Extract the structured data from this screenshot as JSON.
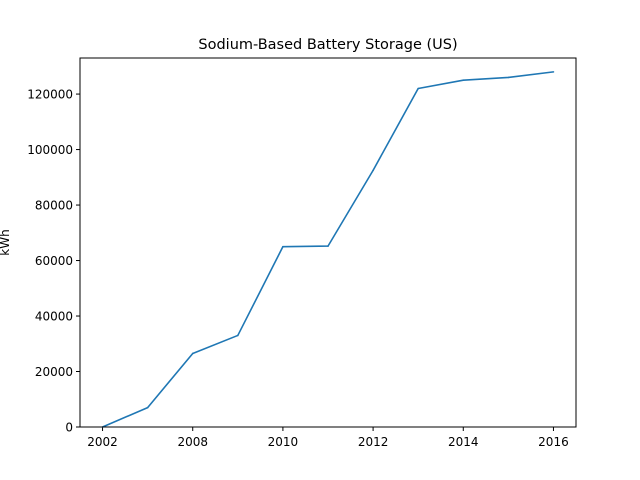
{
  "chart_data": {
    "type": "line",
    "title": "Sodium-Based Battery Storage (US)",
    "xlabel": "",
    "ylabel": "kWh",
    "x_tick_labels": [
      "2002",
      "2008",
      "2010",
      "2012",
      "2014",
      "2016"
    ],
    "y_ticks": [
      0,
      20000,
      40000,
      60000,
      80000,
      100000,
      120000
    ],
    "y_tick_labels": [
      "0",
      "20000",
      "40000",
      "60000",
      "80000",
      "100000",
      "120000"
    ],
    "ylim": [
      0,
      133000
    ],
    "grid": false,
    "legend": "none",
    "series": [
      {
        "color": "#1f77b4",
        "points": [
          {
            "x": "2002",
            "y": 0
          },
          {
            "x": "2003",
            "y": 7000
          },
          {
            "x": "2008",
            "y": 26500
          },
          {
            "x": "2009",
            "y": 33000
          },
          {
            "x": "2010",
            "y": 65000
          },
          {
            "x": "2011",
            "y": 65200
          },
          {
            "x": "2012",
            "y": 92500
          },
          {
            "x": "2013",
            "y": 122000
          },
          {
            "x": "2014",
            "y": 125000
          },
          {
            "x": "2015",
            "y": 126000
          },
          {
            "x": "2016",
            "y": 128000
          }
        ]
      }
    ]
  }
}
